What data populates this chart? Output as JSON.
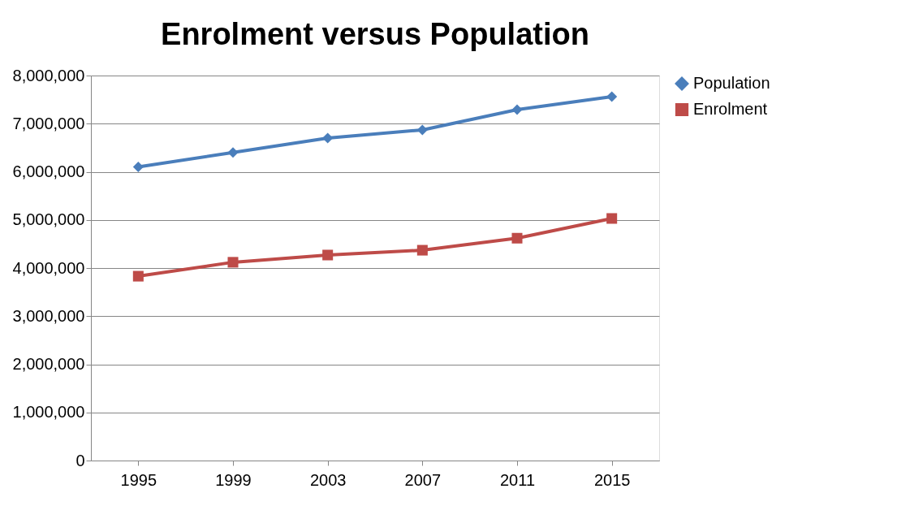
{
  "chart_data": {
    "type": "line",
    "title": "Enrolment versus Population",
    "categories": [
      "1995",
      "1999",
      "2003",
      "2007",
      "2011",
      "2015"
    ],
    "series": [
      {
        "name": "Population",
        "color": "#4a7ebb",
        "marker": "diamond",
        "values": [
          6100000,
          6400000,
          6700000,
          6870000,
          7290000,
          7560000
        ]
      },
      {
        "name": "Enrolment",
        "color": "#be4b48",
        "marker": "square",
        "values": [
          3830000,
          4120000,
          4270000,
          4370000,
          4620000,
          5030000
        ]
      }
    ],
    "ylim": [
      0,
      8000000
    ],
    "yticks": [
      {
        "value": 0,
        "label": "0"
      },
      {
        "value": 1000000,
        "label": "1,000,000"
      },
      {
        "value": 2000000,
        "label": "2,000,000"
      },
      {
        "value": 3000000,
        "label": "3,000,000"
      },
      {
        "value": 4000000,
        "label": "4,000,000"
      },
      {
        "value": 5000000,
        "label": "5,000,000"
      },
      {
        "value": 6000000,
        "label": "6,000,000"
      },
      {
        "value": 7000000,
        "label": "7,000,000"
      },
      {
        "value": 8000000,
        "label": "8,000,000"
      }
    ],
    "grid": "y",
    "legend": "right",
    "line_style": "solid"
  }
}
